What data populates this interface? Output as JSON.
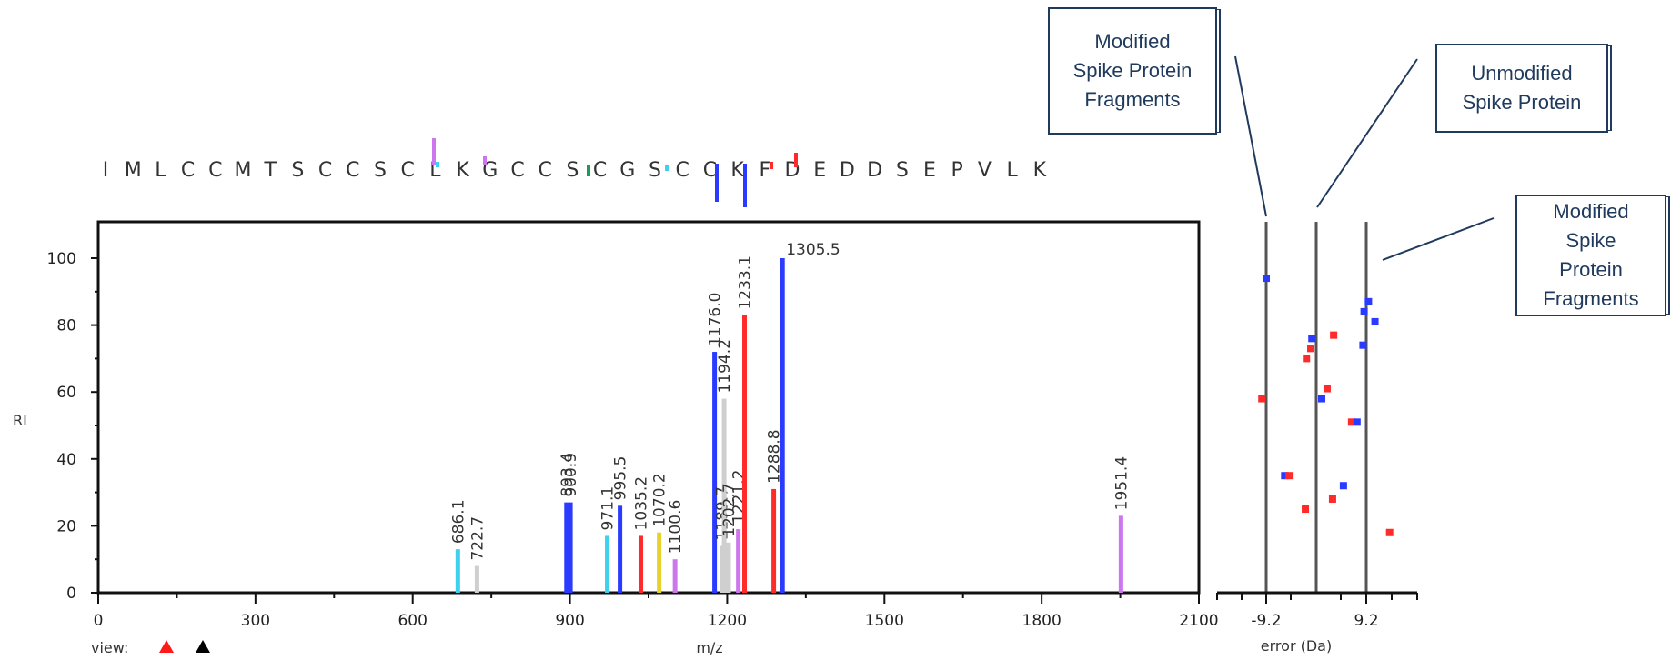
{
  "sequence": [
    "I",
    "M",
    "L",
    "C",
    "C",
    "M",
    "T",
    "S",
    "C",
    "C",
    "S",
    "C",
    "L",
    "K",
    "G",
    "C",
    "C",
    "S",
    "C",
    "G",
    "S",
    "C",
    "C",
    "K",
    "F",
    "D",
    "E",
    "D",
    "D",
    "S",
    "E",
    "P",
    "V",
    "L",
    "K"
  ],
  "callouts": {
    "left": "Modified\nSpike Protein\nFragments",
    "middle": "Unmodified\nSpike Protein",
    "right": "Modified\nSpike\nProtein\nFragments"
  },
  "view_label": "view:",
  "colors": {
    "blue": "#2a3bff",
    "red": "#ff2a2a",
    "cyan": "#3fd0ee",
    "gray": "#cfcfcf",
    "yellow": "#e6d22a",
    "violet": "#cc77ee",
    "green": "#1f9a55",
    "navy": "#1f3a5c"
  },
  "chart_data": [
    {
      "type": "bar",
      "xlabel": "m/z",
      "ylabel": "RI",
      "xlim": [
        0,
        2100
      ],
      "ylim": [
        0,
        100
      ],
      "xticks": [
        0,
        300,
        600,
        900,
        1200,
        1500,
        1800,
        2100
      ],
      "yticks": [
        0,
        20,
        40,
        60,
        80,
        100
      ],
      "peaks": [
        {
          "x": 686.1,
          "y": 13,
          "color": "cyan",
          "label": "686.1"
        },
        {
          "x": 722.7,
          "y": 8,
          "color": "gray",
          "label": "722.7"
        },
        {
          "x": 893.4,
          "y": 27,
          "color": "blue",
          "label": "893.4"
        },
        {
          "x": 900.9,
          "y": 27,
          "color": "blue",
          "label": "900.9"
        },
        {
          "x": 971.1,
          "y": 17,
          "color": "cyan",
          "label": "971.1"
        },
        {
          "x": 995.5,
          "y": 26,
          "color": "blue",
          "label": "995.5"
        },
        {
          "x": 1035.2,
          "y": 17,
          "color": "red",
          "label": "1035.2"
        },
        {
          "x": 1070.2,
          "y": 18,
          "color": "yellow",
          "label": "1070.2"
        },
        {
          "x": 1100.6,
          "y": 10,
          "color": "violet",
          "label": "1100.6"
        },
        {
          "x": 1176.0,
          "y": 72,
          "color": "blue",
          "label": "1176.0"
        },
        {
          "x": 1189.7,
          "y": 14,
          "color": "gray",
          "label": "1189.7"
        },
        {
          "x": 1194.2,
          "y": 58,
          "color": "gray",
          "label": "1194.2"
        },
        {
          "x": 1202.7,
          "y": 15,
          "color": "gray",
          "label": "1202.7"
        },
        {
          "x": 1221.2,
          "y": 19,
          "color": "violet",
          "label": "1221.2"
        },
        {
          "x": 1233.1,
          "y": 83,
          "color": "red",
          "label": "1233.1"
        },
        {
          "x": 1288.8,
          "y": 31,
          "color": "red",
          "label": "1288.8"
        },
        {
          "x": 1305.5,
          "y": 100,
          "color": "blue",
          "label": "1305.5"
        },
        {
          "x": 1951.4,
          "y": 23,
          "color": "violet",
          "label": "1951.4"
        }
      ]
    },
    {
      "type": "scatter",
      "xlabel": "error (Da)",
      "xticks": [
        "-9.2",
        "9.2"
      ],
      "ylim": [
        0,
        100
      ],
      "points": [
        {
          "x": -9.2,
          "y": 94,
          "color": "blue"
        },
        {
          "x": -10.0,
          "y": 58,
          "color": "red"
        },
        {
          "x": -5.8,
          "y": 35,
          "color": "blue"
        },
        {
          "x": -5.0,
          "y": 35,
          "color": "red"
        },
        {
          "x": -2.0,
          "y": 25,
          "color": "red"
        },
        {
          "x": -1.8,
          "y": 70,
          "color": "red"
        },
        {
          "x": -1.0,
          "y": 73,
          "color": "red"
        },
        {
          "x": -0.8,
          "y": 76,
          "color": "blue"
        },
        {
          "x": 1.0,
          "y": 58,
          "color": "blue"
        },
        {
          "x": 2.0,
          "y": 61,
          "color": "red"
        },
        {
          "x": 3.0,
          "y": 28,
          "color": "red"
        },
        {
          "x": 3.2,
          "y": 77,
          "color": "red"
        },
        {
          "x": 5.0,
          "y": 32,
          "color": "blue"
        },
        {
          "x": 6.5,
          "y": 51,
          "color": "red"
        },
        {
          "x": 7.5,
          "y": 51,
          "color": "blue"
        },
        {
          "x": 8.6,
          "y": 74,
          "color": "blue"
        },
        {
          "x": 8.8,
          "y": 84,
          "color": "blue"
        },
        {
          "x": 9.6,
          "y": 87,
          "color": "blue"
        },
        {
          "x": 10.8,
          "y": 81,
          "color": "blue"
        },
        {
          "x": 13.5,
          "y": 18,
          "color": "red"
        }
      ]
    }
  ]
}
